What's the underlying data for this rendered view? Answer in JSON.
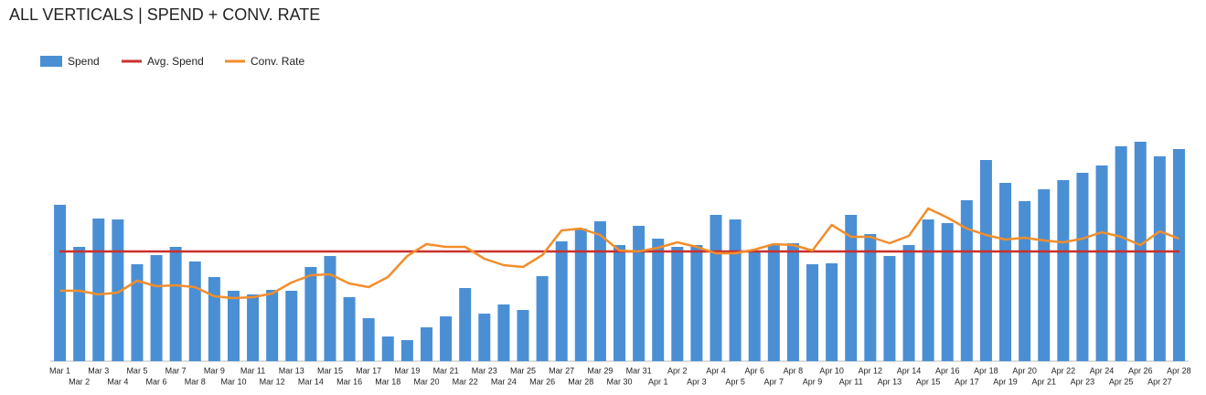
{
  "chart_data": {
    "type": "bar",
    "title": "ALL VERTICALS | SPEND + CONV. RATE",
    "categories": [
      "Mar 1",
      "Mar 2",
      "Mar 3",
      "Mar 4",
      "Mar 5",
      "Mar 6",
      "Mar 7",
      "Mar 8",
      "Mar 9",
      "Mar 10",
      "Mar 11",
      "Mar 12",
      "Mar 13",
      "Mar 14",
      "Mar 15",
      "Mar 16",
      "Mar 17",
      "Mar 18",
      "Mar 19",
      "Mar 20",
      "Mar 21",
      "Mar 22",
      "Mar 23",
      "Mar 24",
      "Mar 25",
      "Mar 26",
      "Mar 27",
      "Mar 28",
      "Mar 29",
      "Mar 30",
      "Mar 31",
      "Apr 1",
      "Apr 2",
      "Apr 3",
      "Apr 4",
      "Apr 5",
      "Apr 6",
      "Apr 7",
      "Apr 8",
      "Apr 9",
      "Apr 10",
      "Apr 11",
      "Apr 12",
      "Apr 13",
      "Apr 14",
      "Apr 15",
      "Apr 16",
      "Apr 17",
      "Apr 18",
      "Apr 19",
      "Apr 20",
      "Apr 21",
      "Apr 22",
      "Apr 23",
      "Apr 24",
      "Apr 25",
      "Apr 26",
      "Apr 27",
      "Apr 28"
    ],
    "series": [
      {
        "name": "Spend",
        "type": "bar",
        "color": "#4a8fd4",
        "values": [
          171,
          125,
          156,
          155,
          106,
          116,
          125,
          109,
          92,
          77,
          73,
          78,
          77,
          103,
          115,
          70,
          47,
          27,
          23,
          37,
          49,
          80,
          52,
          62,
          56,
          93,
          131,
          145,
          153,
          127,
          148,
          134,
          125,
          127,
          160,
          155,
          119,
          127,
          129,
          106,
          107,
          160,
          139,
          115,
          127,
          155,
          151,
          176,
          220,
          195,
          175,
          188,
          198,
          206,
          214,
          235,
          240,
          224,
          232
        ]
      },
      {
        "name": "Avg. Spend",
        "type": "line",
        "color": "#c9302c",
        "values": [
          120,
          120,
          120,
          120,
          120,
          120,
          120,
          120,
          120,
          120,
          120,
          120,
          120,
          120,
          120,
          120,
          120,
          120,
          120,
          120,
          120,
          120,
          120,
          120,
          120,
          120,
          120,
          120,
          120,
          120,
          120,
          120,
          120,
          120,
          120,
          120,
          120,
          120,
          120,
          120,
          120,
          120,
          120,
          120,
          120,
          120,
          120,
          120,
          120,
          120,
          120,
          120,
          120,
          120,
          120,
          120,
          120,
          120,
          120
        ]
      },
      {
        "name": "Conv. Rate",
        "type": "line",
        "color": "#f28e2b",
        "values": [
          77,
          77,
          73,
          75,
          88,
          82,
          83,
          81,
          71,
          69,
          70,
          74,
          86,
          94,
          95,
          85,
          81,
          92,
          115,
          128,
          125,
          125,
          112,
          105,
          103,
          116,
          143,
          145,
          138,
          121,
          120,
          124,
          130,
          125,
          118,
          118,
          122,
          128,
          127,
          121,
          149,
          136,
          136,
          129,
          137,
          167,
          157,
          145,
          138,
          133,
          135,
          132,
          130,
          134,
          141,
          136,
          127,
          142,
          134
        ]
      }
    ],
    "ylim": [
      0,
      250
    ]
  }
}
